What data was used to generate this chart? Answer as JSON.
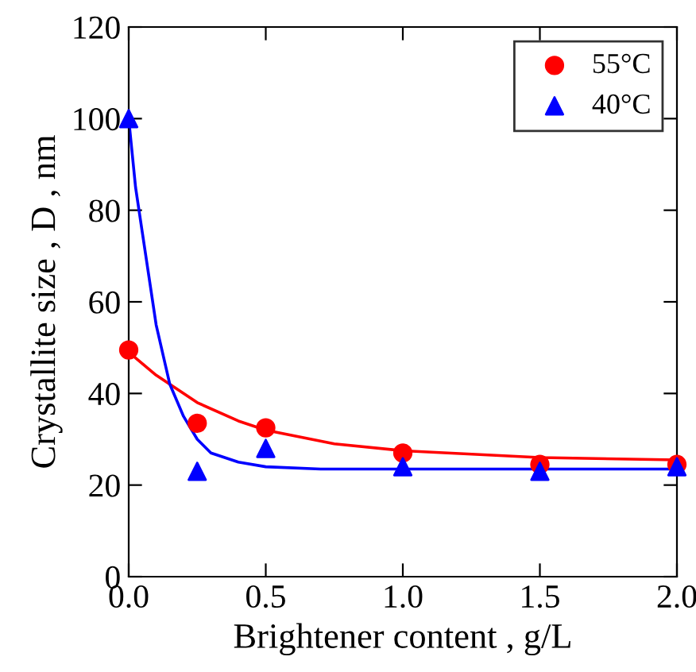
{
  "chart_data": {
    "type": "scatter",
    "xlabel": "Brightener content , g/L",
    "ylabel": "Crystallite size , D , nm",
    "xlim": [
      0,
      2
    ],
    "ylim": [
      0,
      120
    ],
    "xticks": [
      {
        "value": 0,
        "label": "0.0"
      },
      {
        "value": 0.5,
        "label": "0.5"
      },
      {
        "value": 1,
        "label": "1.0"
      },
      {
        "value": 1.5,
        "label": "1.5"
      },
      {
        "value": 2,
        "label": "2.0"
      }
    ],
    "yticks": [
      0,
      20,
      40,
      60,
      80,
      100,
      120
    ],
    "grid": false,
    "legend": "top right",
    "series": [
      {
        "name": "55°C",
        "color": "#ff0000",
        "marker": "circle",
        "x": [
          0,
          0.25,
          0.5,
          1.0,
          1.5,
          2.0
        ],
        "values": [
          49.5,
          33.5,
          32.5,
          27,
          24.5,
          24.5
        ]
      },
      {
        "name": "40°C",
        "color": "#0000ff",
        "marker": "triangle",
        "x": [
          0,
          0.25,
          0.5,
          1.0,
          1.5,
          2.0
        ],
        "values": [
          100,
          23,
          28,
          24,
          23,
          24
        ]
      },
      {
        "type": "line",
        "color": "#ff0000",
        "x": [
          0,
          0.1,
          0.25,
          0.4,
          0.5,
          0.75,
          1.0,
          1.5,
          2.0
        ],
        "values": [
          49,
          44,
          38,
          34,
          32,
          29,
          27.5,
          26,
          25.5
        ]
      },
      {
        "type": "line",
        "color": "#0000ff",
        "x": [
          0,
          0.025,
          0.05,
          0.1,
          0.15,
          0.2,
          0.25,
          0.3,
          0.4,
          0.5,
          0.7,
          1.0,
          2.0
        ],
        "values": [
          100,
          85,
          75,
          55,
          42,
          35,
          30,
          27,
          25,
          24,
          23.5,
          23.5,
          23.5
        ]
      }
    ]
  }
}
